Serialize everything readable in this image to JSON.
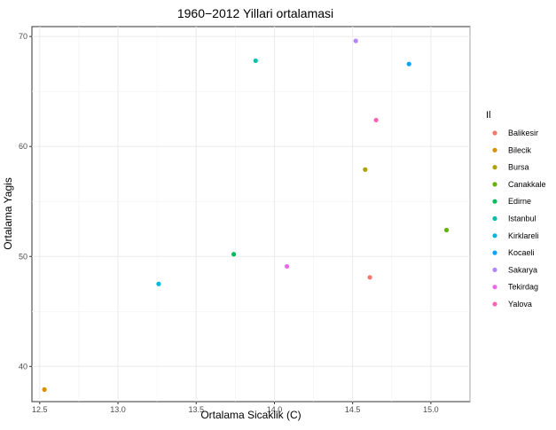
{
  "chart_data": {
    "type": "scatter",
    "title": "1960−2012 Yillari ortalamasi",
    "xlabel": "Ortalama Sicaklik (C)",
    "ylabel": "Ortalama Yagis",
    "xlim": [
      12.45,
      15.25
    ],
    "ylim": [
      36.8,
      70.9
    ],
    "x_ticks": [
      12.5,
      13.0,
      13.5,
      14.0,
      14.5,
      15.0
    ],
    "x_tick_labels": [
      "12.5",
      "13.0",
      "13.5",
      "14.0",
      "14.5",
      "15.0"
    ],
    "y_ticks": [
      40,
      50,
      60,
      70
    ],
    "y_tick_labels": [
      "40",
      "50",
      "60",
      "70"
    ],
    "grid": true,
    "legend": {
      "title": "Il",
      "placement": "right"
    },
    "series": [
      {
        "name": "Balikesir",
        "color": "#F8766D",
        "x": 14.61,
        "y": 48.1
      },
      {
        "name": "Bilecik",
        "color": "#DB8E00",
        "x": 12.53,
        "y": 37.9
      },
      {
        "name": "Bursa",
        "color": "#AEA200",
        "x": 14.58,
        "y": 57.9
      },
      {
        "name": "Canakkale",
        "color": "#64B200",
        "x": 15.1,
        "y": 52.4
      },
      {
        "name": "Edirne",
        "color": "#00BD5C",
        "x": 13.74,
        "y": 50.2
      },
      {
        "name": "Istanbul",
        "color": "#00C1A7",
        "x": 13.88,
        "y": 67.8
      },
      {
        "name": "Kirklareli",
        "color": "#00BADE",
        "x": 13.26,
        "y": 47.5
      },
      {
        "name": "Kocaeli",
        "color": "#00A6FF",
        "x": 14.86,
        "y": 67.5
      },
      {
        "name": "Sakarya",
        "color": "#B385FF",
        "x": 14.52,
        "y": 69.6
      },
      {
        "name": "Tekirdag",
        "color": "#EF67EB",
        "x": 14.08,
        "y": 49.1
      },
      {
        "name": "Yalova",
        "color": "#FF63B6",
        "x": 14.65,
        "y": 62.4
      }
    ]
  }
}
